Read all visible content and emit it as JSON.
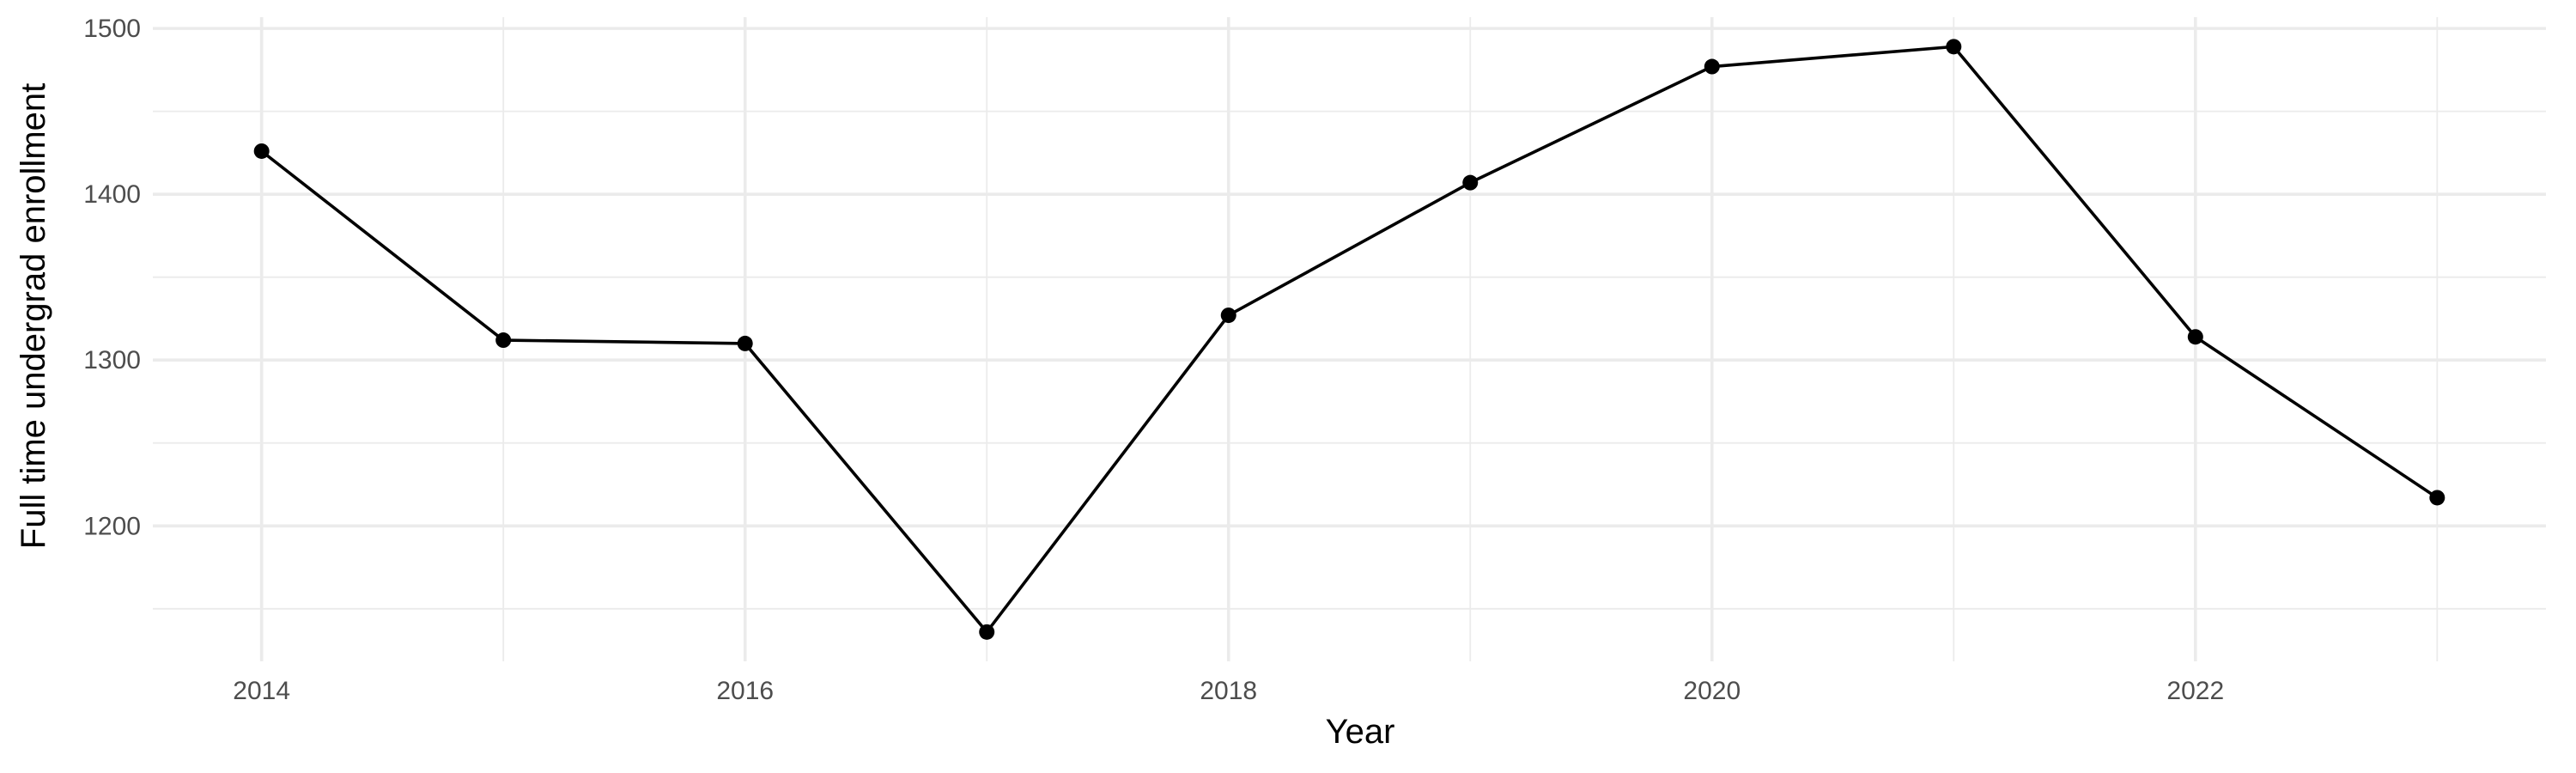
{
  "chart_data": {
    "type": "line",
    "title": "",
    "xlabel": "Year",
    "ylabel": "Full time undergrad enrollment",
    "x": [
      2014,
      2015,
      2016,
      2017,
      2018,
      2019,
      2020,
      2021,
      2022,
      2023
    ],
    "series": [
      {
        "values": [
          1426,
          1312,
          1310,
          1136,
          1327,
          1407,
          1477,
          1489,
          1314,
          1217
        ]
      }
    ],
    "xlim": [
      2013.55,
      2023.45
    ],
    "ylim": [
      1118.3,
      1506.8
    ],
    "x_ticks": [
      2014,
      2016,
      2018,
      2020,
      2022
    ],
    "x_minor_ticks": [
      2015,
      2017,
      2019,
      2021,
      2023
    ],
    "y_ticks": [
      1200,
      1300,
      1400,
      1500
    ],
    "y_minor_ticks": [
      1150,
      1250,
      1350,
      1450
    ],
    "grid": true,
    "legend": "none",
    "colors": {
      "line": "#000000",
      "point": "#000000",
      "grid": "#ebebeb",
      "background": "#ffffff"
    }
  }
}
